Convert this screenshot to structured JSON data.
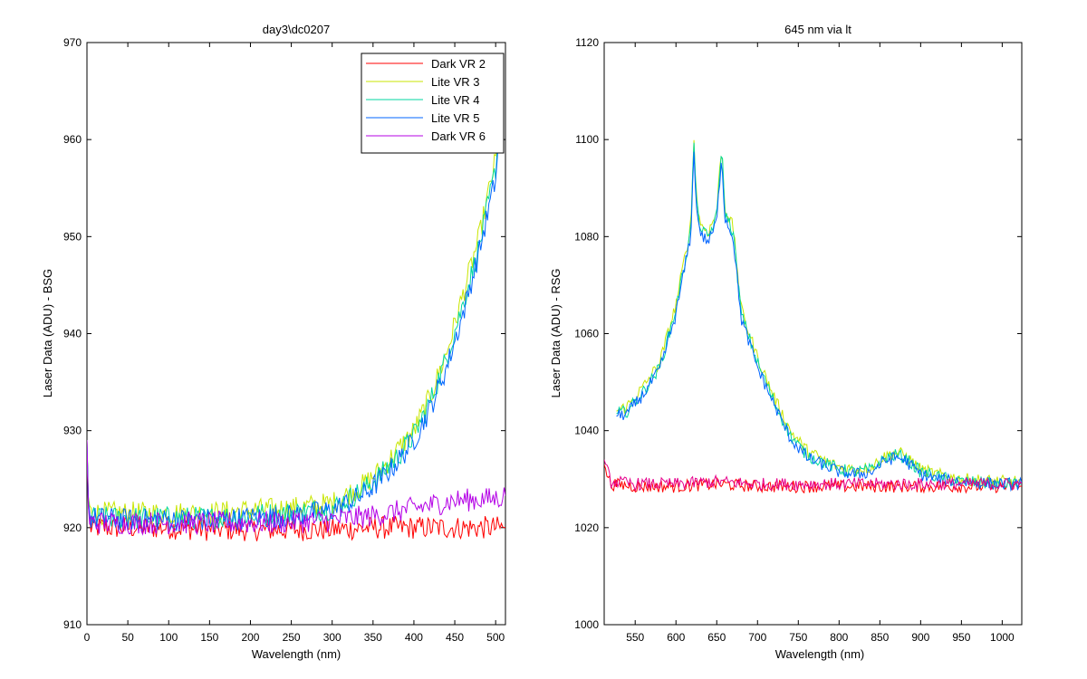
{
  "chart_data": [
    {
      "type": "line",
      "title": "day3\\dc0207",
      "xlabel": "Wavelength (nm)",
      "ylabel": "Laser Data (ADU) - BSG",
      "xlim": [
        0,
        512
      ],
      "ylim": [
        910,
        970
      ],
      "xticks": [
        0,
        50,
        100,
        150,
        200,
        250,
        300,
        350,
        400,
        450,
        500
      ],
      "yticks": [
        910,
        920,
        930,
        940,
        950,
        960,
        970
      ],
      "grid": false,
      "legend_position": "top-right",
      "series": [
        {
          "name": "Dark VR 2",
          "color": "#ff0000",
          "x": [
            0,
            2,
            5,
            50,
            100,
            150,
            200,
            250,
            300,
            350,
            400,
            450,
            500,
            512
          ],
          "y": [
            929,
            921,
            920,
            920,
            920,
            919.8,
            919.8,
            919.8,
            919.8,
            920,
            920,
            920,
            920,
            920
          ]
        },
        {
          "name": "Lite VR 3",
          "color": "#c8e600",
          "x": [
            0,
            2,
            5,
            50,
            100,
            150,
            200,
            250,
            300,
            320,
            340,
            360,
            380,
            400,
            420,
            440,
            460,
            480,
            500,
            505
          ],
          "y": [
            929,
            922,
            921.5,
            921.5,
            921.5,
            921.5,
            921.8,
            922,
            922.5,
            923.5,
            924.5,
            926,
            928,
            930,
            933.5,
            938,
            944,
            950,
            958,
            963
          ]
        },
        {
          "name": "Lite VR 4",
          "color": "#00d7a0",
          "x": [
            0,
            2,
            5,
            50,
            100,
            150,
            200,
            250,
            300,
            320,
            340,
            360,
            380,
            400,
            420,
            440,
            460,
            480,
            500,
            505
          ],
          "y": [
            929,
            922,
            921,
            921,
            921,
            921,
            921.3,
            921.5,
            922,
            923,
            924,
            925.5,
            927.3,
            929.5,
            933,
            937.5,
            943,
            949,
            957,
            962
          ]
        },
        {
          "name": "Lite VR 5",
          "color": "#0064ff",
          "x": [
            0,
            2,
            5,
            50,
            100,
            150,
            200,
            250,
            300,
            320,
            340,
            360,
            380,
            400,
            420,
            440,
            460,
            480,
            500,
            505
          ],
          "y": [
            929,
            921.5,
            921,
            920.8,
            920.8,
            920.8,
            921,
            921.2,
            921.8,
            922.6,
            923.5,
            925,
            926.8,
            929,
            932.3,
            936.5,
            942,
            948.5,
            956,
            961
          ]
        },
        {
          "name": "Dark VR 6",
          "color": "#b400e6",
          "x": [
            0,
            2,
            5,
            50,
            100,
            150,
            200,
            250,
            300,
            350,
            400,
            450,
            500,
            512
          ],
          "y": [
            929,
            921,
            920.5,
            920.5,
            920.5,
            920.5,
            920.5,
            920.6,
            920.8,
            921.2,
            922,
            922.8,
            923,
            923.3
          ]
        }
      ]
    },
    {
      "type": "line",
      "title": "645 nm via lt",
      "xlabel": "Wavelength (nm)",
      "ylabel": "Laser Data (ADU) - RSG",
      "xlim": [
        512,
        1024
      ],
      "ylim": [
        1000,
        1120
      ],
      "xticks": [
        550,
        600,
        650,
        700,
        750,
        800,
        850,
        900,
        950,
        1000
      ],
      "yticks": [
        1000,
        1020,
        1040,
        1060,
        1080,
        1100,
        1120
      ],
      "grid": false,
      "series": [
        {
          "name": "Dark VR 2",
          "color": "#ff0000",
          "x": [
            512,
            520,
            550,
            600,
            650,
            700,
            750,
            800,
            850,
            900,
            950,
            1000,
            1024
          ],
          "y": [
            1033,
            1029,
            1028.5,
            1028.5,
            1029,
            1028.5,
            1028.5,
            1028.5,
            1028.5,
            1028.5,
            1028.5,
            1028.5,
            1028.5
          ]
        },
        {
          "name": "Lite VR 3",
          "color": "#c8e600",
          "x": [
            527,
            540,
            560,
            580,
            600,
            610,
            618,
            622,
            626,
            632,
            640,
            650,
            656,
            660,
            670,
            680,
            700,
            720,
            740,
            760,
            780,
            800,
            820,
            840,
            850,
            860,
            870,
            880,
            900,
            920,
            950,
            1000,
            1024
          ],
          "y": [
            1044,
            1045,
            1049,
            1054,
            1066,
            1075,
            1082,
            1100,
            1086,
            1082,
            1081,
            1085,
            1099,
            1086,
            1082,
            1065,
            1055,
            1047,
            1040,
            1036,
            1034,
            1032.5,
            1032,
            1032.5,
            1034,
            1035,
            1035.5,
            1035,
            1032,
            1031,
            1030,
            1029.5,
            1029.5
          ]
        },
        {
          "name": "Lite VR 4",
          "color": "#00d7a0",
          "x": [
            527,
            540,
            560,
            580,
            600,
            610,
            618,
            622,
            626,
            632,
            640,
            650,
            656,
            660,
            670,
            680,
            700,
            720,
            740,
            760,
            780,
            800,
            820,
            840,
            850,
            860,
            870,
            880,
            900,
            920,
            950,
            1000,
            1024
          ],
          "y": [
            1043.5,
            1044,
            1048,
            1053,
            1065,
            1074,
            1081,
            1099,
            1085,
            1081,
            1080,
            1084,
            1099,
            1085,
            1081,
            1064,
            1054,
            1046,
            1039,
            1035,
            1033.5,
            1032,
            1031.5,
            1032,
            1033.5,
            1034.5,
            1035,
            1034.5,
            1031.5,
            1030.5,
            1029.5,
            1029,
            1029
          ]
        },
        {
          "name": "Lite VR 5",
          "color": "#0064ff",
          "x": [
            527,
            540,
            560,
            580,
            600,
            610,
            618,
            622,
            626,
            632,
            640,
            650,
            656,
            660,
            670,
            680,
            700,
            720,
            740,
            760,
            780,
            800,
            820,
            840,
            850,
            860,
            870,
            880,
            900,
            920,
            950,
            1000,
            1024
          ],
          "y": [
            1043,
            1043.5,
            1047.5,
            1052.5,
            1064,
            1073,
            1080,
            1097,
            1084,
            1080,
            1079,
            1083,
            1097,
            1084,
            1080,
            1063,
            1053,
            1045.5,
            1038.5,
            1034.5,
            1033,
            1031.5,
            1031,
            1031.5,
            1033,
            1034,
            1034.5,
            1034,
            1031,
            1030,
            1029.5,
            1029,
            1029
          ]
        },
        {
          "name": "Dark VR 6",
          "color": "#e6008c",
          "x": [
            512,
            520,
            550,
            600,
            650,
            700,
            750,
            800,
            850,
            900,
            950,
            1000,
            1024
          ],
          "y": [
            1034,
            1029.5,
            1029,
            1029,
            1029.5,
            1029,
            1029,
            1029,
            1029,
            1029,
            1029,
            1029,
            1029
          ]
        }
      ]
    }
  ]
}
